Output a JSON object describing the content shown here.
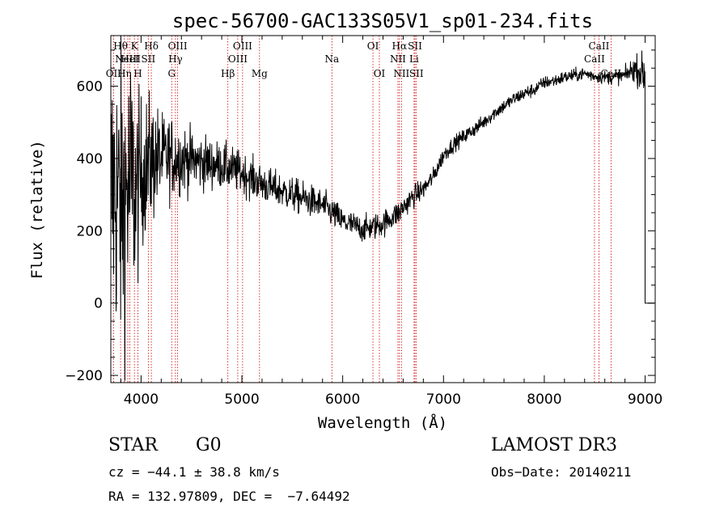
{
  "chart_data": {
    "type": "line",
    "title": "spec-56700-GAC133S05V1_sp01-234.fits",
    "xlabel": "Wavelength (Å)",
    "ylabel": "Flux (relative)",
    "xlim": [
      3700,
      9100
    ],
    "ylim": [
      -220,
      740
    ],
    "x_ticks": [
      4000,
      5000,
      6000,
      7000,
      8000,
      9000
    ],
    "y_ticks": [
      -200,
      0,
      200,
      400,
      600
    ],
    "x_tick_labels": [
      "4000",
      "5000",
      "6000",
      "7000",
      "8000",
      "9000"
    ],
    "y_tick_labels": [
      "−200",
      "0",
      "200",
      "400",
      "600"
    ],
    "series": [
      {
        "name": "spectrum",
        "x": [
          3700,
          3750,
          3800,
          3850,
          3900,
          3950,
          4000,
          4050,
          4100,
          4150,
          4200,
          4300,
          4400,
          4500,
          4600,
          4700,
          4800,
          4900,
          5000,
          5100,
          5200,
          5300,
          5400,
          5500,
          5600,
          5700,
          5800,
          5900,
          6000,
          6100,
          6200,
          6300,
          6400,
          6500,
          6560,
          6600,
          6700,
          6800,
          6900,
          7000,
          7100,
          7200,
          7300,
          7400,
          7500,
          7600,
          7700,
          7800,
          7900,
          8000,
          8100,
          8200,
          8300,
          8400,
          8500,
          8600,
          8700,
          8800,
          8900,
          8950,
          9000
        ],
        "values": [
          300,
          320,
          250,
          300,
          330,
          300,
          360,
          380,
          390,
          400,
          400,
          405,
          400,
          395,
          390,
          385,
          380,
          370,
          360,
          345,
          330,
          318,
          310,
          300,
          290,
          280,
          270,
          250,
          225,
          215,
          205,
          210,
          220,
          240,
          250,
          265,
          295,
          315,
          350,
          410,
          440,
          460,
          480,
          500,
          525,
          545,
          565,
          580,
          590,
          610,
          615,
          625,
          630,
          635,
          628,
          625,
          625,
          630,
          650,
          640,
          630
        ],
        "noise": [
          300,
          300,
          300,
          300,
          260,
          200,
          150,
          140,
          130,
          110,
          90,
          80,
          70,
          60,
          55,
          50,
          45,
          45,
          40,
          40,
          38,
          36,
          35,
          34,
          33,
          32,
          31,
          30,
          28,
          27,
          26,
          26,
          26,
          25,
          25,
          24,
          22,
          20,
          18,
          17,
          16,
          15,
          15,
          14,
          14,
          14,
          14,
          14,
          14,
          13,
          13,
          13,
          13,
          13,
          13,
          13,
          14,
          16,
          25,
          35,
          40
        ]
      }
    ],
    "lines": [
      {
        "wl": 3727,
        "label": "OII",
        "row": 3
      },
      {
        "wl": 3797,
        "label": "Hθ",
        "row": 1
      },
      {
        "wl": 3835,
        "label": "Hη",
        "row": 3
      },
      {
        "wl": 3869,
        "label": "NeIII",
        "row": 2
      },
      {
        "wl": 3889,
        "label": "HeI",
        "row": 2
      },
      {
        "wl": 3934,
        "label": "K",
        "row": 1
      },
      {
        "wl": 3969,
        "label": "H",
        "row": 3
      },
      {
        "wl": 4072,
        "label": "SII",
        "row": 2
      },
      {
        "wl": 4102,
        "label": "Hδ",
        "row": 1
      },
      {
        "wl": 4304,
        "label": "G",
        "row": 3
      },
      {
        "wl": 4341,
        "label": "Hγ",
        "row": 2
      },
      {
        "wl": 4363,
        "label": "OIII",
        "row": 1
      },
      {
        "wl": 4861,
        "label": "Hβ",
        "row": 3
      },
      {
        "wl": 4959,
        "label": "OIII",
        "row": 2
      },
      {
        "wl": 5007,
        "label": "OIII",
        "row": 1
      },
      {
        "wl": 5175,
        "label": "Mg",
        "row": 3
      },
      {
        "wl": 5893,
        "label": "Na",
        "row": 2
      },
      {
        "wl": 6300,
        "label": "OI",
        "row": 1
      },
      {
        "wl": 6364,
        "label": "OI",
        "row": 3
      },
      {
        "wl": 6548,
        "label": "NII",
        "row": 2
      },
      {
        "wl": 6563,
        "label": "Hα",
        "row": 1
      },
      {
        "wl": 6583,
        "label": "NII",
        "row": 3
      },
      {
        "wl": 6708,
        "label": "Li",
        "row": 2
      },
      {
        "wl": 6717,
        "label": "SII",
        "row": 1
      },
      {
        "wl": 6731,
        "label": "SII",
        "row": 3
      },
      {
        "wl": 8498,
        "label": "CaII",
        "row": 2
      },
      {
        "wl": 8542,
        "label": "CaII",
        "row": 1
      },
      {
        "wl": 8662,
        "label": "CaII",
        "row": 3
      }
    ]
  },
  "info": {
    "class": "STAR",
    "subclass": "G0",
    "survey": "LAMOST DR3",
    "redshift": "cz = −44.1 ± 38.8 km/s",
    "obs_date": "Obs−Date: 20140211",
    "coords": "RA = 132.97809, DEC =  −7.64492"
  },
  "colors": {
    "line_marker": "#cc0000",
    "spectrum": "#000000",
    "axis": "#000000"
  }
}
